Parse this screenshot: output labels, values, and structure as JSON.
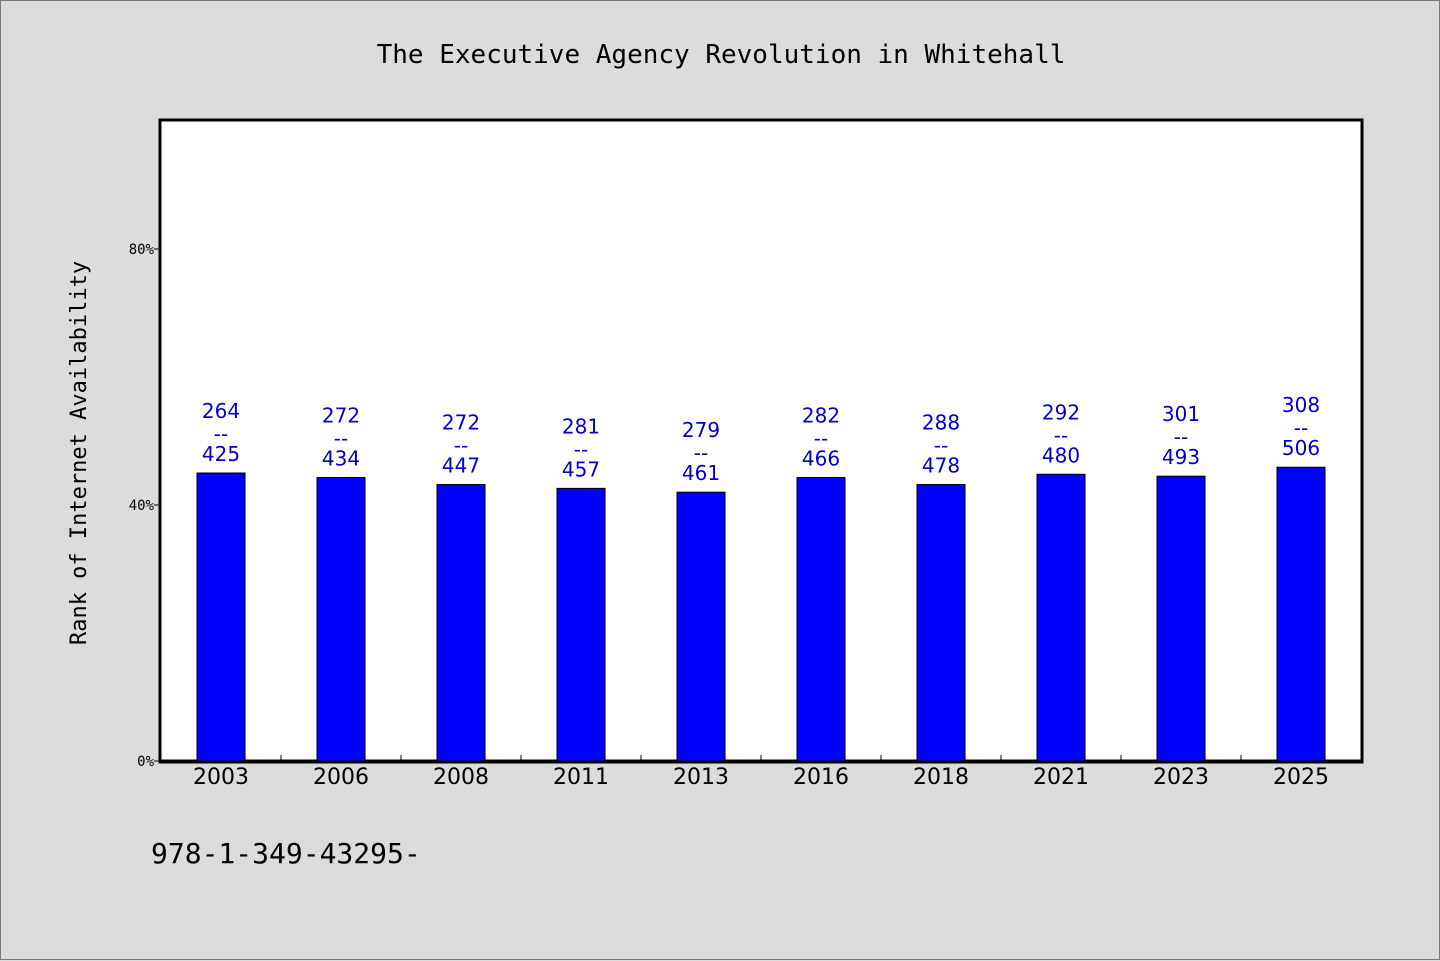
{
  "chart_data": {
    "type": "bar",
    "title": "The Executive Agency Revolution in Whitehall",
    "ylabel": "Rank of Internet Availability",
    "xlabel": "",
    "categories": [
      "2003",
      "2006",
      "2008",
      "2011",
      "2013",
      "2016",
      "2018",
      "2021",
      "2023",
      "2025"
    ],
    "values": [
      45,
      44.3,
      43.2,
      42.6,
      42.0,
      44.3,
      43.2,
      44.8,
      44.5,
      45.9
    ],
    "ylim": [
      0,
      100
    ],
    "yticks": [
      0,
      40,
      80
    ],
    "ytick_labels": [
      "0%",
      "40%",
      "80%"
    ],
    "bar_labels_top": [
      "264",
      "272",
      "272",
      "281",
      "279",
      "282",
      "288",
      "292",
      "301",
      "308"
    ],
    "bar_labels_sep": "--",
    "bar_labels_bottom": [
      "425",
      "434",
      "447",
      "457",
      "461",
      "466",
      "478",
      "480",
      "493",
      "506"
    ],
    "bar_color": "#0000ff",
    "label_color": "#0000cc",
    "grid": false,
    "legend": "none"
  },
  "footer": {
    "text": "978-1-349-43295-"
  }
}
